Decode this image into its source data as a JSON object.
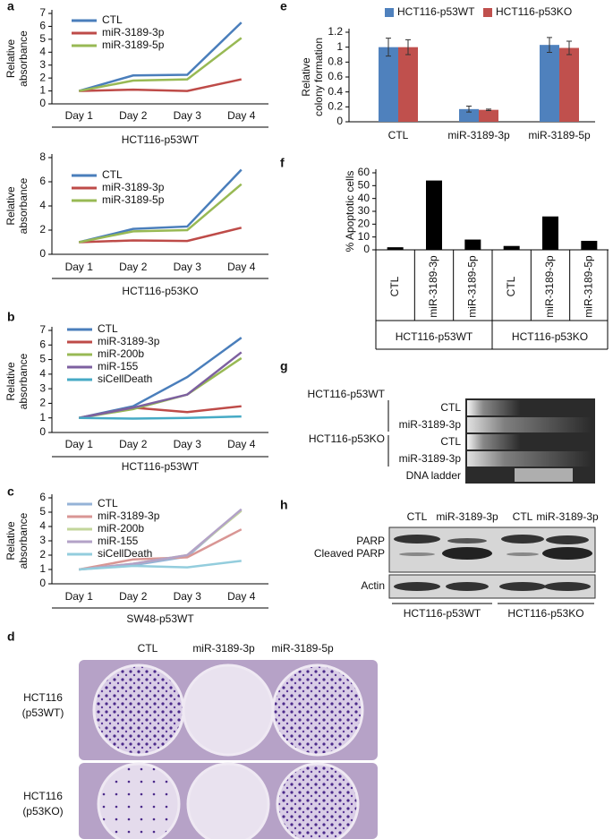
{
  "chart_data": [
    {
      "type": "line",
      "panel": "a",
      "categories": [
        "Day 1",
        "Day 2",
        "Day 3",
        "Day 4"
      ],
      "y_label": [
        "Relative",
        "absorbance"
      ],
      "x_label": "HCT116-p53WT",
      "ylim": [
        0,
        7
      ],
      "yticks": [
        0,
        1,
        2,
        3,
        4,
        5,
        6,
        7
      ],
      "series": [
        {
          "name": "CTL",
          "color": "#4a7ebb",
          "values": [
            1,
            2.2,
            2.25,
            6.3
          ]
        },
        {
          "name": "miR-3189-3p",
          "color": "#be4b48",
          "values": [
            1,
            1.1,
            1.0,
            1.9
          ]
        },
        {
          "name": "miR-3189-5p",
          "color": "#98b954",
          "values": [
            1,
            1.8,
            1.9,
            5.1
          ]
        }
      ]
    },
    {
      "type": "line",
      "categories": [
        "Day 1",
        "Day 2",
        "Day 3",
        "Day 4"
      ],
      "y_label": [
        "Relative",
        "absorbance"
      ],
      "x_label": "HCT116-p53KO",
      "ylim": [
        0,
        8
      ],
      "yticks": [
        0,
        2,
        4,
        6,
        8
      ],
      "series": [
        {
          "name": "CTL",
          "color": "#4a7ebb",
          "values": [
            1,
            2.1,
            2.3,
            7.0
          ]
        },
        {
          "name": "miR-3189-3p",
          "color": "#be4b48",
          "values": [
            1,
            1.15,
            1.1,
            2.2
          ]
        },
        {
          "name": "miR-3189-5p",
          "color": "#98b954",
          "values": [
            1,
            1.9,
            2.0,
            5.8
          ]
        }
      ]
    },
    {
      "type": "line",
      "panel": "b",
      "categories": [
        "Day 1",
        "Day 2",
        "Day 3",
        "Day 4"
      ],
      "y_label": [
        "Relative",
        "absorbance"
      ],
      "x_label": "HCT116-p53WT",
      "ylim": [
        0,
        7
      ],
      "yticks": [
        0,
        1,
        2,
        3,
        4,
        5,
        6,
        7
      ],
      "series": [
        {
          "name": "CTL",
          "color": "#4a7ebb",
          "values": [
            1,
            1.8,
            3.8,
            6.5
          ]
        },
        {
          "name": "miR-3189-3p",
          "color": "#be4b48",
          "values": [
            1,
            1.7,
            1.4,
            1.8
          ]
        },
        {
          "name": "miR-200b",
          "color": "#98b954",
          "values": [
            1,
            1.6,
            2.6,
            5.1
          ]
        },
        {
          "name": "miR-155",
          "color": "#7d60a0",
          "values": [
            1,
            1.7,
            2.6,
            5.5
          ]
        },
        {
          "name": "siCellDeath",
          "color": "#46aac5",
          "values": [
            1,
            0.95,
            1.0,
            1.1
          ]
        }
      ]
    },
    {
      "type": "line",
      "panel": "c",
      "categories": [
        "Day 1",
        "Day 2",
        "Day 3",
        "Day 4"
      ],
      "y_label": [
        "Relative",
        "absorbance"
      ],
      "x_label": "SW48-p53WT",
      "ylim": [
        0,
        6
      ],
      "yticks": [
        0,
        1,
        2,
        3,
        4,
        5,
        6
      ],
      "series": [
        {
          "name": "CTL",
          "color": "#95b3d7",
          "values": [
            1,
            1.3,
            1.9,
            5.2
          ]
        },
        {
          "name": "miR-3189-3p",
          "color": "#d99694",
          "values": [
            1,
            1.7,
            1.85,
            3.8
          ]
        },
        {
          "name": "miR-200b",
          "color": "#c3d69b",
          "values": [
            1,
            1.4,
            2.0,
            5.1
          ]
        },
        {
          "name": "miR-155",
          "color": "#b3a2c7",
          "values": [
            1,
            1.4,
            2.0,
            5.2
          ]
        },
        {
          "name": "siCellDeath",
          "color": "#93cddd",
          "values": [
            1,
            1.25,
            1.15,
            1.6
          ]
        }
      ]
    },
    {
      "type": "bar",
      "panel": "e",
      "categories": [
        "CTL",
        "miR-3189-3p",
        "miR-3189-5p"
      ],
      "y_label": [
        "Relative",
        "colony formation"
      ],
      "ylim": [
        0,
        1.2
      ],
      "yticks": [
        0,
        0.2,
        0.4,
        0.6,
        0.8,
        1,
        1.2
      ],
      "legend": "top",
      "series": [
        {
          "name": "HCT116-p53WT",
          "color": "#4f81bd",
          "values": [
            1.0,
            0.17,
            1.03
          ],
          "errors": [
            0.12,
            0.04,
            0.1
          ]
        },
        {
          "name": "HCT116-p53KO",
          "color": "#c0504d",
          "values": [
            1.0,
            0.16,
            0.99
          ],
          "errors": [
            0.1,
            0.01,
            0.09
          ]
        }
      ]
    },
    {
      "type": "bar",
      "panel": "f",
      "categories": [
        "CTL",
        "miR-3189-3p",
        "miR-3189-5p",
        "CTL",
        "miR-3189-3p",
        "miR-3189-5p"
      ],
      "y_label": [
        "% Apoptotic cells"
      ],
      "ylim": [
        0,
        60
      ],
      "yticks": [
        0,
        10,
        20,
        30,
        40,
        50,
        60
      ],
      "color": "#000000",
      "groups": [
        "HCT116-p53WT",
        "HCT116-p53KO"
      ],
      "values": [
        2,
        54,
        8,
        3,
        26,
        7
      ]
    }
  ],
  "plates": {
    "label": "d",
    "columns": [
      "CTL",
      "miR-3189-3p",
      "miR-3189-5p"
    ],
    "rows": [
      [
        "HCT116",
        "(p53WT)"
      ],
      [
        "HCT116",
        "(p53KO)"
      ]
    ]
  },
  "gel": {
    "label": "g",
    "groups": [
      {
        "name": "HCT116-p53WT",
        "lanes": [
          "CTL",
          "miR-3189-3p"
        ]
      },
      {
        "name": "HCT116-p53KO",
        "lanes": [
          "CTL",
          "miR-3189-3p"
        ]
      }
    ],
    "ladder": "DNA ladder"
  },
  "blot": {
    "label": "h",
    "columns": [
      "CTL",
      "miR-3189-3p",
      "CTL",
      "miR-3189-3p"
    ],
    "rows": [
      "PARP",
      "Cleaved PARP",
      "Actin"
    ],
    "groups": [
      "HCT116-p53WT",
      "HCT116-p53KO"
    ]
  }
}
